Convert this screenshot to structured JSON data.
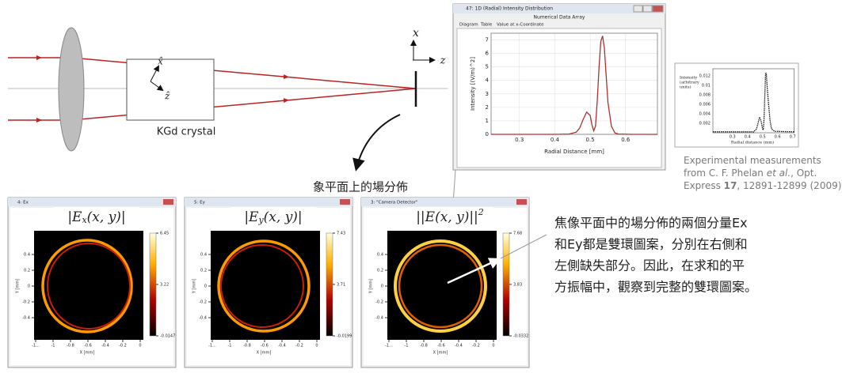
{
  "diagram": {
    "crystal_label": "KGd crystal",
    "crystal_x_axis": "x̂",
    "crystal_z_axis": "ẑ",
    "x_axis": "x",
    "z_axis": "z",
    "image_plane_label": "象平面上的場分佈"
  },
  "radial_window": {
    "title": "47: 1D (Radial) Intensity Distribution",
    "subtitle": "Numerical Data Array",
    "tabs": [
      "Diagram",
      "Table",
      "Value at x-Coordinate"
    ],
    "y_label": "Intensity [(V/m)^2]",
    "x_label": "Radial Distance [mm]",
    "color": "#b03030",
    "xlim": [
      0.22,
      0.69
    ],
    "ylim": [
      0,
      7.5
    ],
    "xticks": [
      0.3,
      0.4,
      0.5,
      0.6
    ],
    "yticks": [
      0,
      1,
      2,
      3,
      4,
      5,
      6,
      7
    ],
    "x": [
      0.22,
      0.4,
      0.44,
      0.46,
      0.47,
      0.48,
      0.49,
      0.5,
      0.505,
      0.51,
      0.515,
      0.52,
      0.525,
      0.53,
      0.535,
      0.54,
      0.545,
      0.55,
      0.56,
      0.57,
      0.58,
      0.62,
      0.69
    ],
    "values": [
      0,
      0,
      0.02,
      0.15,
      0.45,
      1.1,
      1.65,
      1.4,
      0.7,
      0.25,
      0.6,
      2.5,
      5.0,
      6.9,
      7.3,
      6.4,
      4.4,
      2.4,
      0.6,
      0.1,
      0.02,
      0,
      0
    ]
  },
  "experimental": {
    "y_label": [
      "Intensity",
      "(arbitrary",
      "units)"
    ],
    "x_label": "Radial distance (mm)",
    "xlim": [
      0.17,
      0.71
    ],
    "ylim": [
      0,
      0.0135
    ],
    "xticks": [
      0.3,
      0.4,
      0.5,
      0.6,
      0.7
    ],
    "yticks": [
      0.002,
      0.004,
      0.006,
      0.008,
      0.01,
      0.012
    ],
    "x": [
      0.17,
      0.44,
      0.46,
      0.47,
      0.48,
      0.49,
      0.5,
      0.505,
      0.51,
      0.52,
      0.525,
      0.53,
      0.54,
      0.55,
      0.56,
      0.58,
      0.71
    ],
    "values": [
      0.0002,
      0.0002,
      0.0008,
      0.002,
      0.0033,
      0.0025,
      0.0008,
      0.0006,
      0.003,
      0.0125,
      0.0125,
      0.01,
      0.006,
      0.0025,
      0.0008,
      0.0003,
      0.0002
    ],
    "caption": [
      [
        "Experimental measurements"
      ],
      [
        "from C. F. Phelan ",
        "et al.",
        ", Opt."
      ],
      [
        "Express ",
        "17",
        ", 12891-12899 (2009)"
      ]
    ]
  },
  "field_axes": {
    "x_label": "X [mm]",
    "y_label": "Y [mm]",
    "xticks": [
      {
        "value": -1.2,
        "label": "-1..."
      },
      -1,
      -0.8,
      -0.6,
      -0.4,
      -0.2,
      0
    ],
    "yticks": [
      0.4,
      0.2,
      0,
      -0.2,
      -0.4
    ]
  },
  "field_windows": [
    {
      "title": "4: Ex",
      "label": {
        "main": "|E",
        "sub": "x",
        "tail": "(x, y)|"
      },
      "colorbar_ticks": [
        6.45,
        3.22,
        -0.0147
      ]
    },
    {
      "title": "5: Ey",
      "label": {
        "main": "|E",
        "sub": "y",
        "tail": "(x, y)|"
      },
      "colorbar_ticks": [
        7.43,
        3.71,
        -0.0199
      ]
    },
    {
      "title": "3: \"Camera Detector\"",
      "label": {
        "main": "||E(x, y)||",
        "sup": "2"
      },
      "colorbar_ticks": [
        7.68,
        3.83,
        -0.0332
      ]
    }
  ],
  "annotation": [
    "焦像平面中的場分佈的兩個分量Ex",
    "和Ey都是雙環圖案，分別在右側和",
    "左側缺失部分。因此，在求和的平",
    "方振幅中，觀察到完整的雙環圖案。"
  ]
}
